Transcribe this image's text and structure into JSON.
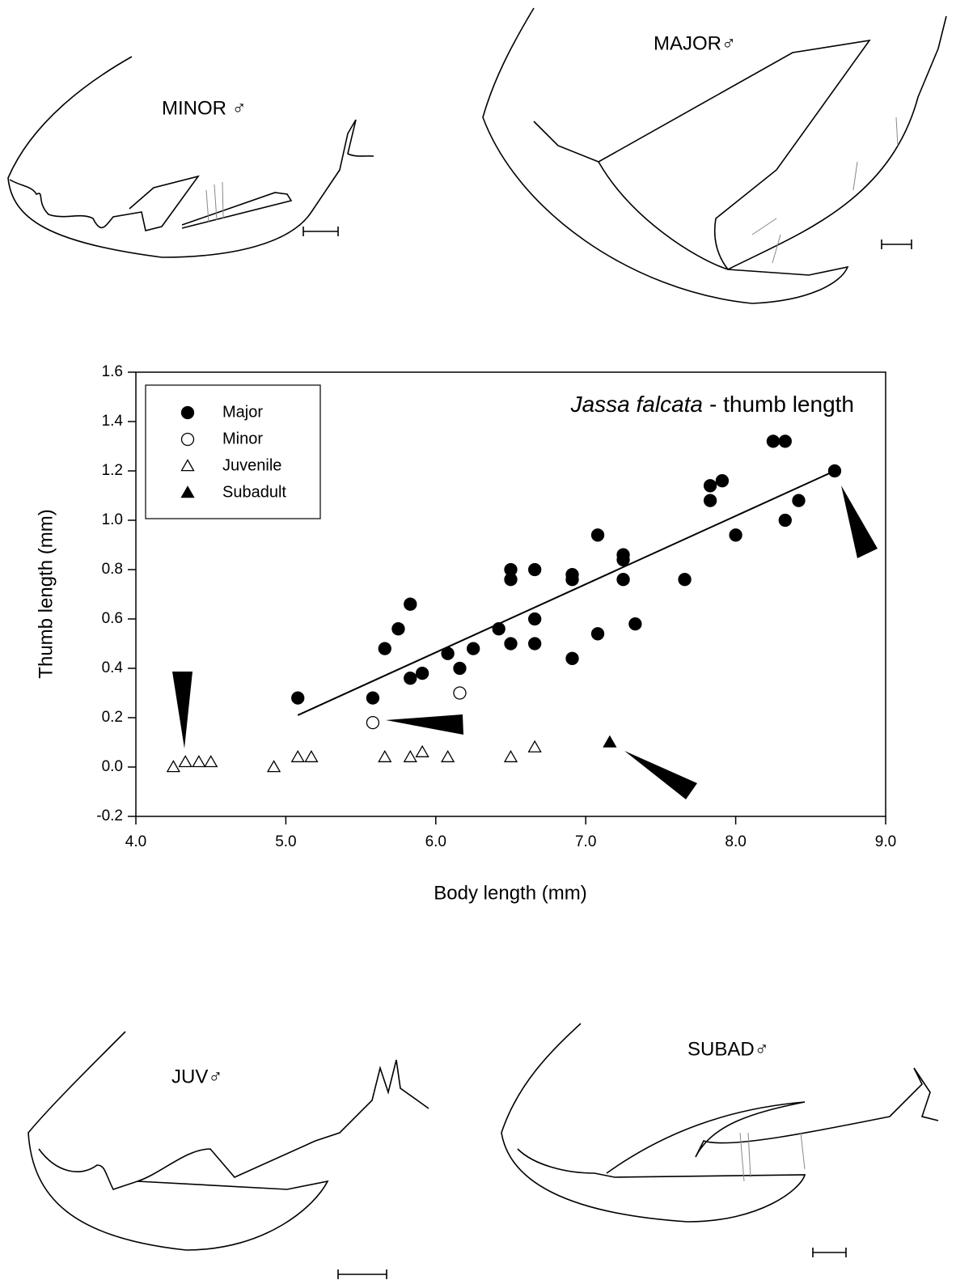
{
  "chart_data": {
    "type": "scatter",
    "title": {
      "species": "Jassa falcata",
      "text": "- thumb length"
    },
    "x_label": "Body length (mm)",
    "y_label": "Thumb length (mm)",
    "xlim": [
      4,
      9
    ],
    "ylim": [
      -0.2,
      1.6
    ],
    "xticks": [
      {
        "value": 4,
        "label": "4.0"
      },
      {
        "value": 5,
        "label": "5.0"
      },
      {
        "value": 6,
        "label": "6.0"
      },
      {
        "value": 7,
        "label": "7.0"
      },
      {
        "value": 8,
        "label": "8.0"
      },
      {
        "value": 9,
        "label": "9.0"
      }
    ],
    "yticks": [
      -0.2,
      {
        "value": 0,
        "label": "0.0"
      },
      0.2,
      0.4,
      0.6,
      0.8,
      {
        "value": 1,
        "label": "1.0"
      },
      1.2,
      1.4,
      1.6
    ],
    "legend": "upper left",
    "series": [
      {
        "name": "Major",
        "marker": "circle",
        "filled": true,
        "color": "#000000",
        "x": [
          5.08,
          5.58,
          5.66,
          5.75,
          5.83,
          5.83,
          5.91,
          6.08,
          6.16,
          6.25,
          6.42,
          6.5,
          6.5,
          6.5,
          6.66,
          6.66,
          6.66,
          6.91,
          6.91,
          6.91,
          7.08,
          7.08,
          7.25,
          7.25,
          7.25,
          7.33,
          7.66,
          7.83,
          7.83,
          7.91,
          8.0,
          8.25,
          8.33,
          8.33,
          8.42,
          8.66
        ],
        "values": [
          0.28,
          0.28,
          0.48,
          0.56,
          0.66,
          0.36,
          0.38,
          0.46,
          0.4,
          0.48,
          0.56,
          0.8,
          0.76,
          0.5,
          0.8,
          0.6,
          0.5,
          0.78,
          0.76,
          0.44,
          0.94,
          0.54,
          0.86,
          0.84,
          0.76,
          0.58,
          0.76,
          1.14,
          1.08,
          1.16,
          0.94,
          1.32,
          1.32,
          1.0,
          1.08,
          1.2
        ]
      },
      {
        "name": "Minor",
        "marker": "circle",
        "filled": false,
        "color": "#000000",
        "x": [
          5.58,
          6.16
        ],
        "values": [
          0.18,
          0.3
        ]
      },
      {
        "name": "Juvenile",
        "marker": "triangle",
        "filled": false,
        "color": "#000000",
        "x": [
          4.25,
          4.33,
          4.42,
          4.5,
          4.92,
          5.08,
          5.17,
          5.66,
          5.83,
          5.91,
          6.08,
          6.5,
          6.66
        ],
        "values": [
          0,
          0.02,
          0.02,
          0.02,
          0,
          0.04,
          0.04,
          0.04,
          0.04,
          0.06,
          0.04,
          0.04,
          0.08
        ]
      },
      {
        "name": "Subadult",
        "marker": "triangle",
        "filled": true,
        "color": "#000000",
        "x": [
          7.16
        ],
        "values": [
          0.1
        ]
      }
    ],
    "fit": {
      "x": [
        5.08,
        8.66
      ],
      "values": [
        0.21,
        1.2
      ]
    },
    "panels": [
      {
        "label": "MINOR ♂"
      },
      {
        "label": "MAJOR♂"
      },
      {
        "label": "JUV♂"
      },
      {
        "label": "SUBAD♂"
      }
    ]
  }
}
